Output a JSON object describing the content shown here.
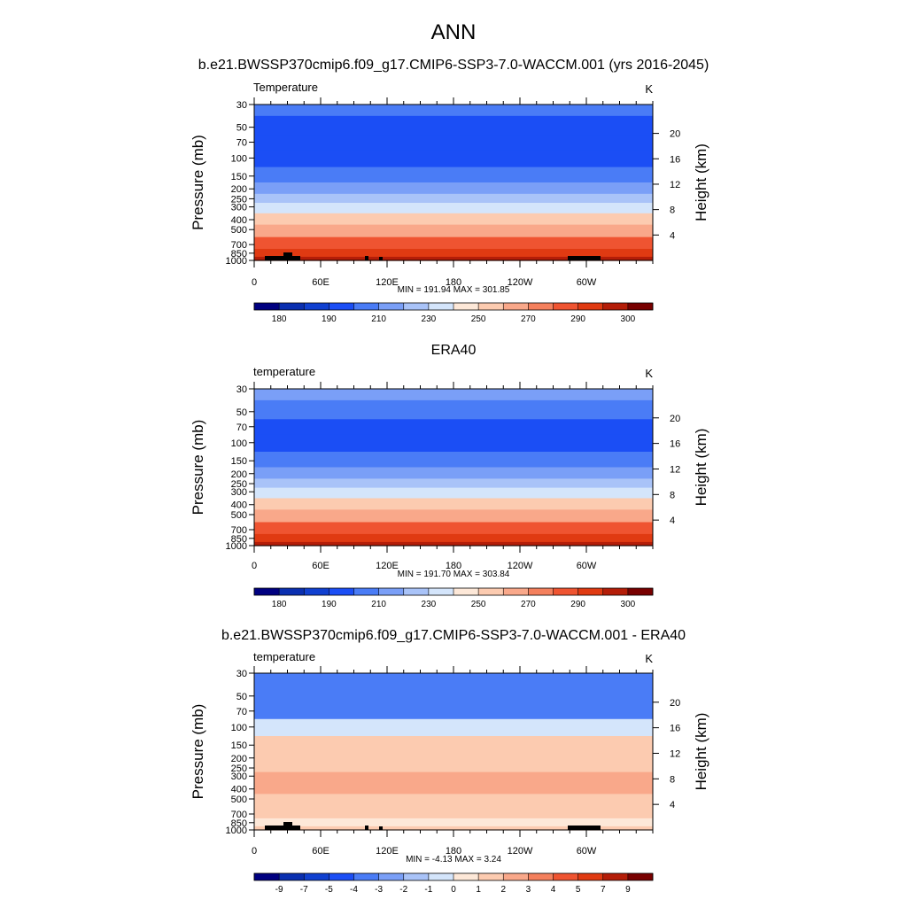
{
  "title": "ANN",
  "panels": [
    {
      "header": "b.e21.BWSSP370cmip6.f09_g17.CMIP6-SSP3-7.0-WACCM.001 (yrs 2016-2045)",
      "var_label": "Temperature",
      "units": "K",
      "stats": "MIN = 191.94  MAX = 301.85",
      "colorbar_labels": [
        "180",
        "190",
        "210",
        "230",
        "250",
        "270",
        "290",
        "300"
      ]
    },
    {
      "header": "ERA40",
      "var_label": "temperature",
      "units": "K",
      "stats": "MIN = 191.70  MAX = 303.84",
      "colorbar_labels": [
        "180",
        "190",
        "210",
        "230",
        "250",
        "270",
        "290",
        "300"
      ]
    },
    {
      "header": "b.e21.BWSSP370cmip6.f09_g17.CMIP6-SSP3-7.0-WACCM.001 - ERA40",
      "var_label": "temperature",
      "units": "K",
      "stats": "MIN =  -4.13  MAX =   3.24",
      "colorbar_labels": [
        "-9",
        "-7",
        "-5",
        "-4",
        "-3",
        "-2",
        "-1",
        "0",
        "1",
        "2",
        "3",
        "4",
        "5",
        "7",
        "9"
      ]
    }
  ],
  "axes": {
    "ylabel_left": "Pressure (mb)",
    "ylabel_right": "Height (km)",
    "x_tick_labels": [
      "0",
      "60E",
      "120E",
      "180",
      "120W",
      "60W"
    ],
    "pressure_ticks": [
      "30",
      "50",
      "70",
      "100",
      "150",
      "200",
      "250",
      "300",
      "400",
      "500",
      "700",
      "850",
      "1000"
    ],
    "height_ticks": [
      "20",
      "16",
      "12",
      "8",
      "4"
    ]
  },
  "colors": {
    "temperature_scale": [
      "#000080",
      "#0a2fb0",
      "#1040d0",
      "#1b4ef5",
      "#4a7cf6",
      "#7a9ff7",
      "#a9c3f8",
      "#d4e5fb",
      "#fde8d8",
      "#fccbb0",
      "#f9a88a",
      "#f4805d",
      "#ef5431",
      "#e03a12",
      "#b41d08",
      "#780000"
    ],
    "difference_scale": [
      "#000080",
      "#0a2fb0",
      "#1040d0",
      "#1b4ef5",
      "#4a7cf6",
      "#7a9ff7",
      "#a9c3f8",
      "#d4e5fb",
      "#fde8d8",
      "#fccbb0",
      "#f9a88a",
      "#f4805d",
      "#ef5431",
      "#e03a12",
      "#b41d08",
      "#780000"
    ],
    "topography": "#000000"
  },
  "chart_data": [
    {
      "type": "heatmap",
      "title": "Temperature",
      "units": "K",
      "xlabel": "",
      "ylabel": "Pressure (mb)",
      "ylabel_right": "Height (km)",
      "x_ticks": [
        "0",
        "60E",
        "120E",
        "180",
        "120W",
        "60W"
      ],
      "y_ticks_pressure": [
        30,
        50,
        70,
        100,
        150,
        200,
        250,
        300,
        400,
        500,
        700,
        850,
        1000
      ],
      "y_ticks_height": [
        20,
        16,
        12,
        8,
        4
      ],
      "min": 191.94,
      "max": 301.85,
      "contour_levels": [
        180,
        185,
        190,
        195,
        200,
        210,
        220,
        230,
        240,
        250,
        260,
        270,
        280,
        290,
        300
      ],
      "profile": [
        {
          "p": 30,
          "level": 4
        },
        {
          "p": 50,
          "level": 3
        },
        {
          "p": 70,
          "level": 3
        },
        {
          "p": 100,
          "level": 3
        },
        {
          "p": 150,
          "level": 4
        },
        {
          "p": 200,
          "level": 5
        },
        {
          "p": 250,
          "level": 6
        },
        {
          "p": 300,
          "level": 7
        },
        {
          "p": 400,
          "level": 9
        },
        {
          "p": 500,
          "level": 10
        },
        {
          "p": 700,
          "level": 12
        },
        {
          "p": 850,
          "level": 13
        },
        {
          "p": 1000,
          "level": 14
        }
      ]
    },
    {
      "type": "heatmap",
      "title": "temperature",
      "units": "K",
      "xlabel": "",
      "ylabel": "Pressure (mb)",
      "ylabel_right": "Height (km)",
      "x_ticks": [
        "0",
        "60E",
        "120E",
        "180",
        "120W",
        "60W"
      ],
      "y_ticks_pressure": [
        30,
        50,
        70,
        100,
        150,
        200,
        250,
        300,
        400,
        500,
        700,
        850,
        1000
      ],
      "y_ticks_height": [
        20,
        16,
        12,
        8,
        4
      ],
      "min": 191.7,
      "max": 303.84,
      "contour_levels": [
        180,
        185,
        190,
        195,
        200,
        210,
        220,
        230,
        240,
        250,
        260,
        270,
        280,
        290,
        300
      ],
      "profile": [
        {
          "p": 30,
          "level": 5
        },
        {
          "p": 50,
          "level": 4
        },
        {
          "p": 70,
          "level": 3
        },
        {
          "p": 100,
          "level": 3
        },
        {
          "p": 150,
          "level": 4
        },
        {
          "p": 200,
          "level": 5
        },
        {
          "p": 250,
          "level": 6
        },
        {
          "p": 300,
          "level": 7
        },
        {
          "p": 400,
          "level": 9
        },
        {
          "p": 500,
          "level": 10
        },
        {
          "p": 700,
          "level": 12
        },
        {
          "p": 850,
          "level": 13
        },
        {
          "p": 1000,
          "level": 14
        }
      ]
    },
    {
      "type": "heatmap",
      "title": "temperature",
      "units": "K",
      "xlabel": "",
      "ylabel": "Pressure (mb)",
      "ylabel_right": "Height (km)",
      "x_ticks": [
        "0",
        "60E",
        "120E",
        "180",
        "120W",
        "60W"
      ],
      "y_ticks_pressure": [
        30,
        50,
        70,
        100,
        150,
        200,
        250,
        300,
        400,
        500,
        700,
        850,
        1000
      ],
      "y_ticks_height": [
        20,
        16,
        12,
        8,
        4
      ],
      "min": -4.13,
      "max": 3.24,
      "contour_levels": [
        -9,
        -7,
        -5,
        -4,
        -3,
        -2,
        -1,
        0,
        1,
        2,
        3,
        4,
        5,
        7,
        9
      ],
      "profile": [
        {
          "p": 30,
          "level": 4
        },
        {
          "p": 50,
          "level": 4
        },
        {
          "p": 70,
          "level": 4
        },
        {
          "p": 100,
          "level": 7
        },
        {
          "p": 150,
          "level": 9
        },
        {
          "p": 200,
          "level": 9
        },
        {
          "p": 250,
          "level": 9
        },
        {
          "p": 300,
          "level": 10
        },
        {
          "p": 400,
          "level": 10
        },
        {
          "p": 500,
          "level": 9
        },
        {
          "p": 700,
          "level": 9
        },
        {
          "p": 850,
          "level": 8
        },
        {
          "p": 1000,
          "level": 9
        }
      ]
    }
  ]
}
